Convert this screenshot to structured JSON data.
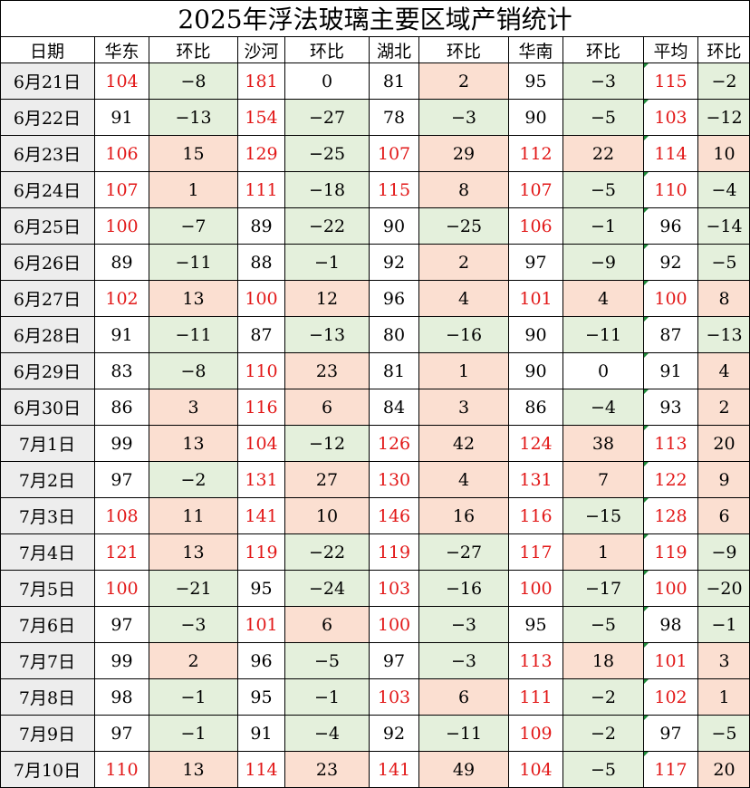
{
  "title": "2025年浮法玻璃主要区域产销统计",
  "chart_data": {
    "type": "table",
    "title": "2025年浮法玻璃主要区域产销统计",
    "columns": [
      "日期",
      "华东",
      "环比",
      "沙河",
      "环比",
      "湖北",
      "环比",
      "华南",
      "环比",
      "平均",
      "环比"
    ],
    "highlight_colors": {
      "above_100_text": "#e21818",
      "positive_change_bg": "#fbdfd1",
      "negative_change_bg": "#e4f0dc",
      "date_bg": "#ededed"
    },
    "rows": [
      [
        "6月21日",
        "104",
        "-8",
        "181",
        "0",
        "81",
        "2",
        "95",
        "-3",
        "115",
        "-2"
      ],
      [
        "6月22日",
        "91",
        "-13",
        "154",
        "-27",
        "78",
        "-3",
        "90",
        "-5",
        "103",
        "-12"
      ],
      [
        "6月23日",
        "106",
        "15",
        "129",
        "-25",
        "107",
        "29",
        "112",
        "22",
        "114",
        "10"
      ],
      [
        "6月24日",
        "107",
        "1",
        "111",
        "-18",
        "115",
        "8",
        "107",
        "-5",
        "110",
        "-4"
      ],
      [
        "6月25日",
        "100",
        "-7",
        "89",
        "-22",
        "90",
        "-25",
        "106",
        "-1",
        "96",
        "-14"
      ],
      [
        "6月26日",
        "89",
        "-11",
        "88",
        "-1",
        "92",
        "2",
        "97",
        "-9",
        "92",
        "-5"
      ],
      [
        "6月27日",
        "102",
        "13",
        "100",
        "12",
        "96",
        "4",
        "101",
        "4",
        "100",
        "8"
      ],
      [
        "6月28日",
        "91",
        "-11",
        "87",
        "-13",
        "80",
        "-16",
        "90",
        "-11",
        "87",
        "-13"
      ],
      [
        "6月29日",
        "83",
        "-8",
        "110",
        "23",
        "81",
        "1",
        "90",
        "0",
        "91",
        "4"
      ],
      [
        "6月30日",
        "86",
        "3",
        "116",
        "6",
        "84",
        "3",
        "86",
        "-4",
        "93",
        "2"
      ],
      [
        "7月1日",
        "99",
        "13",
        "104",
        "-12",
        "126",
        "42",
        "124",
        "38",
        "113",
        "20"
      ],
      [
        "7月2日",
        "97",
        "-2",
        "131",
        "27",
        "130",
        "4",
        "131",
        "7",
        "122",
        "9"
      ],
      [
        "7月3日",
        "108",
        "11",
        "141",
        "10",
        "146",
        "16",
        "116",
        "-15",
        "128",
        "6"
      ],
      [
        "7月4日",
        "121",
        "13",
        "119",
        "-22",
        "119",
        "-27",
        "117",
        "1",
        "119",
        "-9"
      ],
      [
        "7月5日",
        "100",
        "-21",
        "95",
        "-24",
        "103",
        "-16",
        "100",
        "-17",
        "100",
        "-20"
      ],
      [
        "7月6日",
        "97",
        "-3",
        "101",
        "6",
        "100",
        "-3",
        "95",
        "-5",
        "98",
        "-1"
      ],
      [
        "7月7日",
        "99",
        "2",
        "96",
        "-5",
        "97",
        "-3",
        "113",
        "18",
        "101",
        "3"
      ],
      [
        "7月8日",
        "98",
        "-1",
        "95",
        "-1",
        "103",
        "6",
        "111",
        "-2",
        "102",
        "1"
      ],
      [
        "7月9日",
        "97",
        "-1",
        "91",
        "-4",
        "92",
        "-11",
        "109",
        "-2",
        "97",
        "-5"
      ],
      [
        "7月10日",
        "110",
        "13",
        "114",
        "23",
        "141",
        "49",
        "104",
        "-5",
        "117",
        "20"
      ]
    ]
  }
}
